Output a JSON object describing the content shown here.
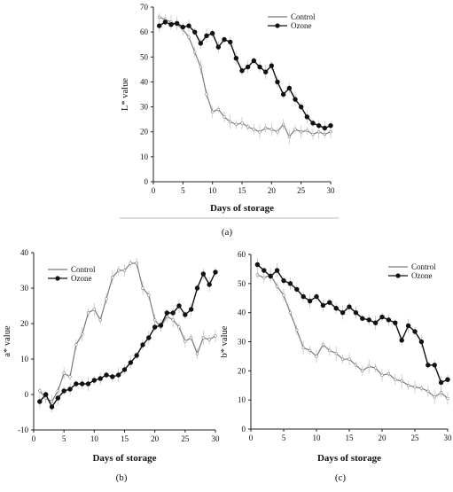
{
  "figure": {
    "panels": [
      "(a)",
      "(b)",
      "(c)"
    ]
  },
  "chart_data": [
    {
      "id": "a",
      "type": "line",
      "panel_label": "(a)",
      "xlabel": "Days of storage",
      "ylabel": "L* value",
      "xlim": [
        0,
        30
      ],
      "ylim": [
        0,
        70
      ],
      "xticks": [
        0,
        5,
        10,
        15,
        20,
        25,
        30
      ],
      "yticks": [
        0,
        10,
        20,
        30,
        40,
        50,
        60,
        70
      ],
      "legend": "top-right",
      "series": [
        {
          "name": "Control",
          "marker": "open",
          "x": [
            1,
            2,
            3,
            4,
            5,
            6,
            7,
            8,
            9,
            10,
            11,
            12,
            13,
            14,
            15,
            16,
            17,
            18,
            19,
            20,
            21,
            22,
            23,
            24,
            25,
            26,
            27,
            28,
            29,
            30
          ],
          "y": [
            66,
            65,
            64,
            63,
            61,
            58,
            52,
            46,
            35,
            28,
            29,
            26,
            24,
            23,
            23.5,
            22,
            21,
            20,
            21.5,
            21,
            20,
            23,
            18,
            21,
            20,
            20.5,
            19,
            20,
            19,
            20
          ]
        },
        {
          "name": "Ozone",
          "marker": "filled",
          "x": [
            1,
            2,
            3,
            4,
            5,
            6,
            7,
            8,
            9,
            10,
            11,
            12,
            13,
            14,
            15,
            16,
            17,
            18,
            19,
            20,
            21,
            22,
            23,
            24,
            25,
            26,
            27,
            28,
            29,
            30
          ],
          "y": [
            62.5,
            64,
            63,
            63.5,
            62,
            62.5,
            60,
            55.5,
            58.5,
            59.5,
            54,
            57,
            56,
            49.5,
            44.5,
            46,
            48.5,
            46,
            44,
            46.5,
            40,
            35,
            37.5,
            33,
            30,
            26,
            23.5,
            22.5,
            21.5,
            22.5
          ]
        }
      ]
    },
    {
      "id": "b",
      "type": "line",
      "panel_label": "(b)",
      "xlabel": "Days of storage",
      "ylabel": "a* value",
      "xlim": [
        0,
        30
      ],
      "ylim": [
        -10,
        40
      ],
      "xticks": [
        0,
        5,
        10,
        15,
        20,
        25,
        30
      ],
      "yticks": [
        -10,
        0,
        10,
        20,
        30,
        40
      ],
      "legend": "top-left",
      "series": [
        {
          "name": "Control",
          "marker": "open",
          "x": [
            1,
            2,
            3,
            4,
            5,
            6,
            7,
            8,
            9,
            10,
            11,
            12,
            13,
            14,
            15,
            16,
            17,
            18,
            19,
            20,
            21,
            22,
            23,
            24,
            25,
            26,
            27,
            28,
            29,
            30
          ],
          "y": [
            1,
            -1,
            -2,
            1,
            6,
            5,
            14,
            17,
            23,
            24,
            21,
            27,
            33,
            35,
            35,
            37,
            37,
            30,
            28,
            21,
            19,
            22,
            21,
            19,
            15,
            16,
            11.5,
            16,
            15.5,
            16.5
          ]
        },
        {
          "name": "Ozone",
          "marker": "filled",
          "x": [
            1,
            2,
            3,
            4,
            5,
            6,
            7,
            8,
            9,
            10,
            11,
            12,
            13,
            14,
            15,
            16,
            17,
            18,
            19,
            20,
            21,
            22,
            23,
            24,
            25,
            26,
            27,
            28,
            29,
            30
          ],
          "y": [
            -2,
            0,
            -3.5,
            -1,
            1,
            1.5,
            3,
            3,
            3,
            4,
            4.5,
            5.5,
            5,
            5.5,
            7,
            9,
            11,
            14,
            16,
            19,
            19.5,
            23,
            23,
            25,
            22.5,
            24,
            30,
            34,
            31,
            34.5
          ]
        }
      ]
    },
    {
      "id": "c",
      "type": "line",
      "panel_label": "(c)",
      "xlabel": "Days of storage",
      "ylabel": "b* value",
      "xlim": [
        0,
        30
      ],
      "ylim": [
        0,
        60
      ],
      "xticks": [
        0,
        5,
        10,
        15,
        20,
        25,
        30
      ],
      "yticks": [
        0,
        10,
        20,
        30,
        40,
        50,
        60
      ],
      "legend": "top-right",
      "series": [
        {
          "name": "Control",
          "marker": "open",
          "x": [
            1,
            2,
            3,
            4,
            5,
            6,
            7,
            8,
            9,
            10,
            11,
            12,
            13,
            14,
            15,
            16,
            17,
            18,
            19,
            20,
            21,
            22,
            23,
            24,
            25,
            26,
            27,
            28,
            29,
            30
          ],
          "y": [
            53,
            52,
            53,
            49,
            46,
            40,
            34,
            28,
            27,
            25,
            29,
            27,
            26,
            24,
            24,
            22,
            20,
            21.5,
            21,
            18.5,
            19,
            17,
            16.5,
            15,
            14.5,
            14,
            13,
            11,
            12.5,
            10.5
          ]
        },
        {
          "name": "Ozone",
          "marker": "filled",
          "x": [
            1,
            2,
            3,
            4,
            5,
            6,
            7,
            8,
            9,
            10,
            11,
            12,
            13,
            14,
            15,
            16,
            17,
            18,
            19,
            20,
            21,
            22,
            23,
            24,
            25,
            26,
            27,
            28,
            29,
            30
          ],
          "y": [
            56.5,
            54.5,
            52.5,
            54.5,
            51,
            50,
            48,
            45.5,
            44,
            45.5,
            42.5,
            43.5,
            41.5,
            40,
            42,
            40,
            38,
            37.5,
            36.5,
            38.5,
            37.5,
            36.5,
            30.5,
            35.5,
            33.5,
            30,
            22,
            22,
            16,
            17
          ]
        }
      ]
    }
  ]
}
